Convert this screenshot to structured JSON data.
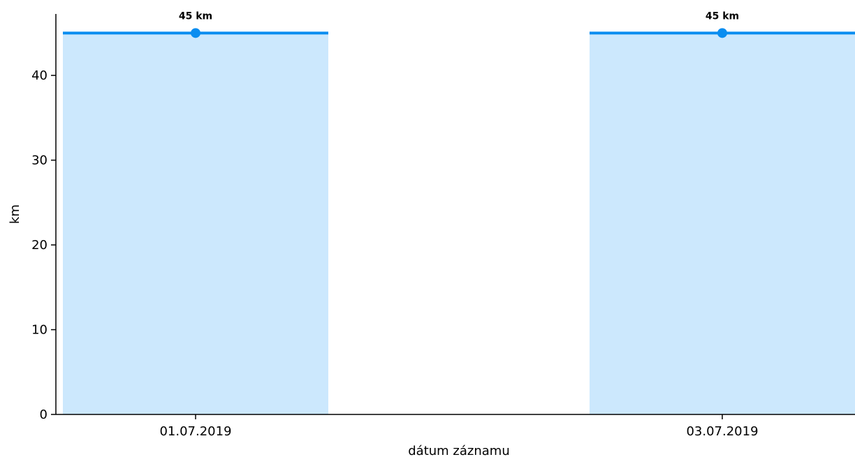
{
  "chart_data": {
    "type": "area",
    "x_categories": [
      "01.07.2019",
      "03.07.2019"
    ],
    "series": [
      {
        "values": [
          45,
          45
        ],
        "data_labels": [
          "45 km",
          "45 km"
        ]
      }
    ],
    "xlabel": "dátum záznamu",
    "ylabel": "km",
    "ylim": [
      0,
      47.25
    ],
    "y_ticks": [
      0,
      10,
      20,
      30,
      40
    ],
    "grid": false,
    "colors": {
      "line": "#0a8df0",
      "fill": "#cce8fd",
      "axis": "#000000"
    }
  }
}
